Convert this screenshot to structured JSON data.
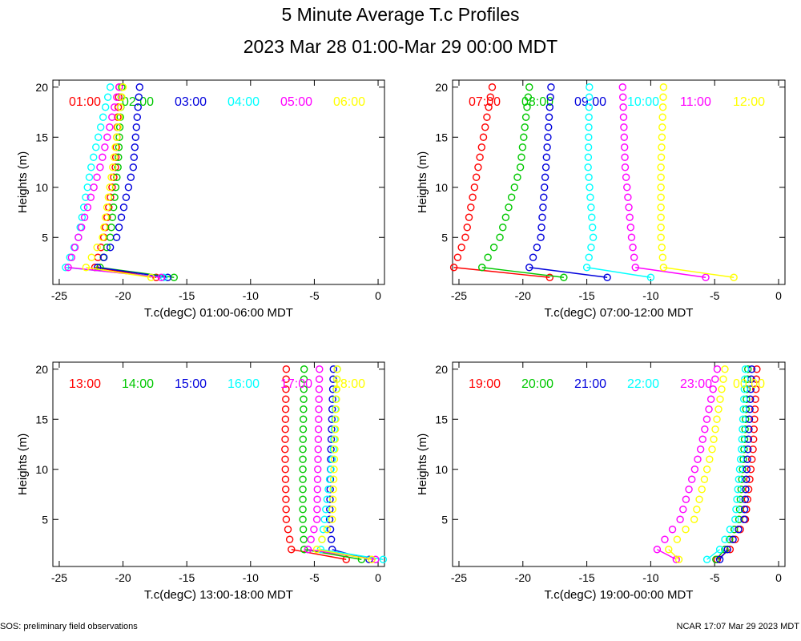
{
  "title": "5 Minute Average T.c Profiles",
  "subtitle": "2023 Mar 28 01:00-Mar 29 00:00 MDT",
  "footer": {
    "left": "SOS: preliminary field observations",
    "right": "NCAR 17:07 Mar 29 2023 MDT"
  },
  "colors": [
    "#ff0000",
    "#00c800",
    "#0000dc",
    "#00ffff",
    "#ff00ff",
    "#ffff00"
  ],
  "chart_data": [
    {
      "type": "scatter",
      "xlabel": "T.c(degC) 01:00-06:00 MDT",
      "ylabel": "Heights (m)",
      "xlim": [
        -25.5,
        0.5
      ],
      "ylim": [
        0.3,
        20.7
      ],
      "xticks": [
        "-25",
        "-20",
        "-15",
        "-10",
        "-5",
        "0"
      ],
      "yticks": [
        "5",
        "10",
        "15",
        "20"
      ],
      "series": [
        {
          "name": "01:00",
          "upper": [
            [
              -20.3,
              20
            ],
            [
              -20.6,
              12
            ],
            [
              -21.5,
              5
            ],
            [
              -22.2,
              2
            ]
          ],
          "surface": [
            -17.4,
            1
          ]
        },
        {
          "name": "02:00",
          "upper": [
            [
              -20.1,
              20
            ],
            [
              -20.4,
              12
            ],
            [
              -21.0,
              5
            ],
            [
              -21.8,
              2
            ]
          ],
          "surface": [
            -16.0,
            1
          ]
        },
        {
          "name": "03:00",
          "upper": [
            [
              -18.7,
              20
            ],
            [
              -19.2,
              12
            ],
            [
              -20.5,
              5
            ],
            [
              -22.0,
              2
            ]
          ],
          "surface": [
            -16.5,
            1
          ]
        },
        {
          "name": "04:00",
          "upper": [
            [
              -21.0,
              20
            ],
            [
              -22.5,
              12
            ],
            [
              -23.5,
              5
            ],
            [
              -24.5,
              2
            ]
          ],
          "surface": [
            -16.8,
            1
          ]
        },
        {
          "name": "05:00",
          "upper": [
            [
              -20.3,
              20
            ],
            [
              -21.8,
              12
            ],
            [
              -23.5,
              5
            ],
            [
              -24.3,
              2
            ]
          ],
          "surface": [
            -17.0,
            1
          ]
        },
        {
          "name": "06:00",
          "upper": [
            [
              -20.0,
              20
            ],
            [
              -20.8,
              12
            ],
            [
              -21.6,
              5
            ],
            [
              -22.9,
              2
            ]
          ],
          "surface": [
            -17.8,
            1
          ]
        }
      ]
    },
    {
      "type": "scatter",
      "xlabel": "T.c(degC) 07:00-12:00 MDT",
      "ylabel": "Heights (m)",
      "xlim": [
        -25.5,
        0.5
      ],
      "ylim": [
        0.3,
        20.7
      ],
      "xticks": [
        "-25",
        "-20",
        "-15",
        "-10",
        "-5",
        "0"
      ],
      "yticks": [
        "5",
        "10",
        "15",
        "20"
      ],
      "series": [
        {
          "name": "07:00",
          "upper": [
            [
              -22.4,
              20
            ],
            [
              -23.5,
              12
            ],
            [
              -24.5,
              5
            ],
            [
              -25.4,
              2
            ]
          ],
          "surface": [
            -17.9,
            1
          ]
        },
        {
          "name": "08:00",
          "upper": [
            [
              -19.5,
              20
            ],
            [
              -20.2,
              12
            ],
            [
              -21.8,
              5
            ],
            [
              -23.2,
              2
            ]
          ],
          "surface": [
            -16.8,
            1
          ]
        },
        {
          "name": "09:00",
          "upper": [
            [
              -17.8,
              20
            ],
            [
              -18.2,
              12
            ],
            [
              -18.6,
              5
            ],
            [
              -19.5,
              2
            ]
          ],
          "surface": [
            -13.4,
            1
          ]
        },
        {
          "name": "10:00",
          "upper": [
            [
              -14.8,
              20
            ],
            [
              -14.9,
              12
            ],
            [
              -14.5,
              5
            ],
            [
              -15.0,
              2
            ]
          ],
          "surface": [
            -10.0,
            1
          ]
        },
        {
          "name": "11:00",
          "upper": [
            [
              -12.2,
              20
            ],
            [
              -12.0,
              12
            ],
            [
              -11.5,
              5
            ],
            [
              -11.2,
              2
            ]
          ],
          "surface": [
            -5.7,
            1
          ]
        },
        {
          "name": "12:00",
          "upper": [
            [
              -9.0,
              20
            ],
            [
              -9.2,
              12
            ],
            [
              -9.2,
              5
            ],
            [
              -9.0,
              2
            ]
          ],
          "surface": [
            -3.5,
            1
          ]
        }
      ]
    },
    {
      "type": "scatter",
      "xlabel": "T.c(degC) 13:00-18:00 MDT",
      "ylabel": "Heights (m)",
      "xlim": [
        -25.5,
        0.5
      ],
      "ylim": [
        0.3,
        20.7
      ],
      "xticks": [
        "-25",
        "-20",
        "-15",
        "-10",
        "-5",
        "0"
      ],
      "yticks": [
        "5",
        "10",
        "15",
        "20"
      ],
      "series": [
        {
          "name": "13:00",
          "upper": [
            [
              -7.2,
              20
            ],
            [
              -7.3,
              12
            ],
            [
              -7.2,
              5
            ],
            [
              -6.8,
              2
            ]
          ],
          "surface": [
            -2.5,
            1
          ]
        },
        {
          "name": "14:00",
          "upper": [
            [
              -5.8,
              20
            ],
            [
              -5.9,
              12
            ],
            [
              -5.9,
              5
            ],
            [
              -5.8,
              2
            ]
          ],
          "surface": [
            -1.3,
            1
          ]
        },
        {
          "name": "15:00",
          "upper": [
            [
              -3.5,
              20
            ],
            [
              -3.7,
              12
            ],
            [
              -3.8,
              5
            ],
            [
              -3.6,
              2
            ]
          ],
          "surface": [
            -0.7,
            1
          ]
        },
        {
          "name": "16:00",
          "upper": [
            [
              -3.2,
              20
            ],
            [
              -3.5,
              12
            ],
            [
              -4.2,
              5
            ],
            [
              -4.5,
              2
            ]
          ],
          "surface": [
            0.4,
            1
          ]
        },
        {
          "name": "17:00",
          "upper": [
            [
              -4.6,
              20
            ],
            [
              -4.7,
              12
            ],
            [
              -4.8,
              5
            ],
            [
              -5.5,
              2
            ]
          ],
          "surface": [
            -0.2,
            1
          ]
        },
        {
          "name": "18:00",
          "upper": [
            [
              -3.2,
              20
            ],
            [
              -3.4,
              12
            ],
            [
              -3.6,
              5
            ],
            [
              -4.8,
              2
            ]
          ],
          "surface": [
            -0.5,
            1
          ]
        }
      ]
    },
    {
      "type": "scatter",
      "xlabel": "T.c(degC) 19:00-00:00 MDT",
      "ylabel": "Heights (m)",
      "xlim": [
        -25.5,
        0.5
      ],
      "ylim": [
        0.3,
        20.7
      ],
      "xticks": [
        "-25",
        "-20",
        "-15",
        "-10",
        "-5",
        "0"
      ],
      "yticks": [
        "5",
        "10",
        "15",
        "20"
      ],
      "series": [
        {
          "name": "19:00",
          "upper": [
            [
              -1.7,
              20
            ],
            [
              -2.0,
              12
            ],
            [
              -2.6,
              5
            ],
            [
              -3.8,
              2
            ]
          ],
          "surface": [
            -4.8,
            1
          ]
        },
        {
          "name": "20:00",
          "upper": [
            [
              -2.4,
              20
            ],
            [
              -2.7,
              12
            ],
            [
              -3.1,
              5
            ],
            [
              -4.2,
              2
            ]
          ],
          "surface": [
            -4.9,
            1
          ]
        },
        {
          "name": "21:00",
          "upper": [
            [
              -2.1,
              20
            ],
            [
              -2.4,
              12
            ],
            [
              -2.7,
              5
            ],
            [
              -4.0,
              2
            ]
          ],
          "surface": [
            -4.6,
            1
          ]
        },
        {
          "name": "22:00",
          "upper": [
            [
              -2.6,
              20
            ],
            [
              -2.9,
              12
            ],
            [
              -3.4,
              5
            ],
            [
              -4.6,
              2
            ]
          ],
          "surface": [
            -5.6,
            1
          ]
        },
        {
          "name": "23:00",
          "upper": [
            [
              -4.8,
              20
            ],
            [
              -6.1,
              12
            ],
            [
              -7.7,
              5
            ],
            [
              -9.5,
              2
            ]
          ],
          "surface": [
            -8.0,
            1
          ]
        },
        {
          "name": "00:00",
          "upper": [
            [
              -4.2,
              20
            ],
            [
              -5.2,
              12
            ],
            [
              -6.6,
              5
            ],
            [
              -8.6,
              2
            ]
          ],
          "surface": [
            -7.8,
            1
          ]
        }
      ]
    }
  ]
}
